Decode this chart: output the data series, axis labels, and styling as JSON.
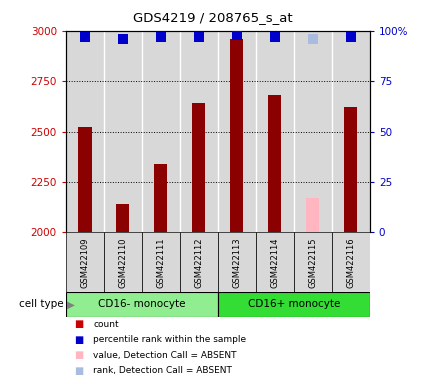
{
  "title": "GDS4219 / 208765_s_at",
  "samples": [
    "GSM422109",
    "GSM422110",
    "GSM422111",
    "GSM422112",
    "GSM422113",
    "GSM422114",
    "GSM422115",
    "GSM422116"
  ],
  "counts": [
    2520,
    2140,
    2340,
    2640,
    2960,
    2680,
    null,
    2620
  ],
  "counts_absent": [
    null,
    null,
    null,
    null,
    null,
    null,
    2170,
    null
  ],
  "percentile_ranks": [
    97,
    96,
    97,
    97,
    98,
    97,
    null,
    97
  ],
  "percentile_ranks_absent": [
    null,
    null,
    null,
    null,
    null,
    null,
    96,
    null
  ],
  "ylim_left": [
    2000,
    3000
  ],
  "ylim_right": [
    0,
    100
  ],
  "yticks_left": [
    2000,
    2250,
    2500,
    2750,
    3000
  ],
  "yticks_right": [
    0,
    25,
    50,
    75,
    100
  ],
  "cell_types": [
    {
      "label": "CD16- monocyte",
      "start": 0,
      "end": 4,
      "color": "#90ee90"
    },
    {
      "label": "CD16+ monocyte",
      "start": 4,
      "end": 8,
      "color": "#33dd33"
    }
  ],
  "bar_color_present": "#8b0000",
  "bar_color_absent": "#ffb6c1",
  "dot_color_present": "#0000cc",
  "dot_color_absent": "#aabbdd",
  "bg_color": "#d8d8d8",
  "legend_items": [
    {
      "label": "count",
      "color": "#cc0000"
    },
    {
      "label": "percentile rank within the sample",
      "color": "#0000cc"
    },
    {
      "label": "value, Detection Call = ABSENT",
      "color": "#ffb6c1"
    },
    {
      "label": "rank, Detection Call = ABSENT",
      "color": "#aabbdd"
    }
  ],
  "bar_width": 0.35,
  "dot_size": 45,
  "left_tick_color": "#cc0000",
  "right_tick_color": "#0000cc"
}
